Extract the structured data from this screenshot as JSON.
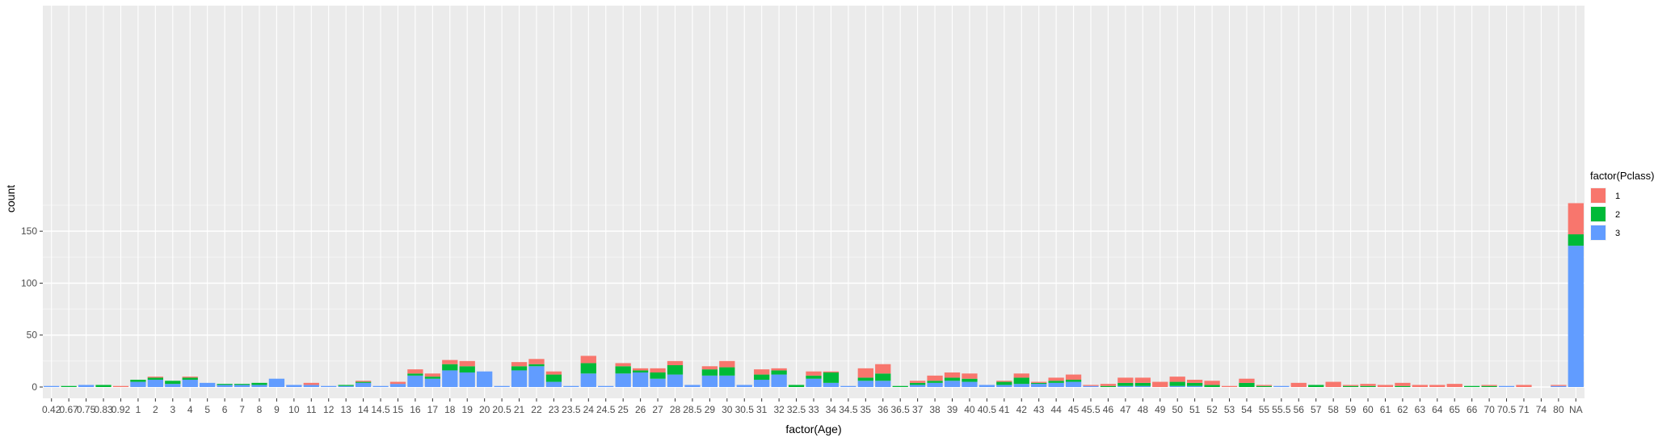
{
  "chart_data": {
    "type": "bar",
    "stacked": true,
    "xlabel": "factor(Age)",
    "ylabel": "count",
    "ylim": [
      0,
      185
    ],
    "y_ticks": [
      0,
      50,
      100,
      150
    ],
    "grid": true,
    "legend_title": "factor(Pclass)",
    "legend_position": "right",
    "categories": [
      "0.42",
      "0.67",
      "0.75",
      "0.83",
      "0.92",
      "1",
      "2",
      "3",
      "4",
      "5",
      "6",
      "7",
      "8",
      "9",
      "10",
      "11",
      "12",
      "13",
      "14",
      "14.5",
      "15",
      "16",
      "17",
      "18",
      "19",
      "20",
      "20.5",
      "21",
      "22",
      "23",
      "23.5",
      "24",
      "24.5",
      "25",
      "26",
      "27",
      "28",
      "28.5",
      "29",
      "30",
      "30.5",
      "31",
      "32",
      "32.5",
      "33",
      "34",
      "34.5",
      "35",
      "36",
      "36.5",
      "37",
      "38",
      "39",
      "40",
      "40.5",
      "41",
      "42",
      "43",
      "44",
      "45",
      "45.5",
      "46",
      "47",
      "48",
      "49",
      "50",
      "51",
      "52",
      "53",
      "54",
      "55",
      "55.5",
      "56",
      "57",
      "58",
      "59",
      "60",
      "61",
      "62",
      "63",
      "64",
      "65",
      "66",
      "70",
      "70.5",
      "71",
      "74",
      "80",
      "NA"
    ],
    "series": [
      {
        "name": "3",
        "color": "#619CFF",
        "values": [
          1,
          0,
          2,
          0,
          0,
          5,
          7,
          3,
          7,
          4,
          2,
          2,
          2,
          8,
          2,
          2,
          1,
          1,
          4,
          1,
          3,
          11,
          8,
          16,
          14,
          15,
          1,
          16,
          20,
          5,
          1,
          13,
          1,
          13,
          14,
          8,
          12,
          2,
          11,
          11,
          2,
          7,
          12,
          0,
          8,
          4,
          1,
          6,
          6,
          0,
          2,
          4,
          6,
          5,
          2,
          2,
          3,
          3,
          4,
          5,
          1,
          0,
          1,
          1,
          0,
          1,
          1,
          0,
          0,
          0,
          0,
          1,
          0,
          0,
          0,
          0,
          0,
          0,
          0,
          0,
          0,
          0,
          0,
          0,
          1,
          0,
          0,
          1,
          136
        ]
      },
      {
        "name": "2",
        "color": "#00BA38",
        "values": [
          0,
          1,
          0,
          2,
          0,
          2,
          2,
          3,
          2,
          0,
          1,
          1,
          2,
          0,
          0,
          0,
          0,
          1,
          1,
          0,
          0,
          2,
          2,
          6,
          6,
          0,
          0,
          4,
          2,
          7,
          0,
          10,
          0,
          7,
          2,
          6,
          9,
          0,
          6,
          8,
          0,
          5,
          4,
          2,
          3,
          10,
          0,
          3,
          7,
          1,
          2,
          2,
          3,
          3,
          0,
          3,
          6,
          1,
          2,
          2,
          0,
          1,
          3,
          3,
          0,
          4,
          3,
          2,
          0,
          4,
          1,
          0,
          0,
          2,
          0,
          1,
          1,
          0,
          1,
          0,
          0,
          0,
          1,
          1,
          0,
          0,
          0,
          0,
          11
        ]
      },
      {
        "name": "1",
        "color": "#F8766D",
        "values": [
          0,
          0,
          0,
          0,
          1,
          0,
          1,
          0,
          1,
          0,
          0,
          0,
          0,
          0,
          0,
          2,
          0,
          0,
          1,
          0,
          2,
          4,
          3,
          4,
          5,
          0,
          0,
          4,
          5,
          3,
          0,
          7,
          0,
          3,
          2,
          4,
          4,
          0,
          3,
          6,
          0,
          5,
          2,
          0,
          4,
          1,
          0,
          9,
          9,
          0,
          2,
          5,
          5,
          5,
          0,
          1,
          4,
          1,
          3,
          5,
          1,
          2,
          5,
          5,
          5,
          5,
          3,
          4,
          1,
          4,
          1,
          0,
          4,
          0,
          5,
          1,
          2,
          2,
          3,
          2,
          2,
          3,
          0,
          1,
          0,
          2,
          0,
          1,
          30
        ]
      }
    ]
  }
}
